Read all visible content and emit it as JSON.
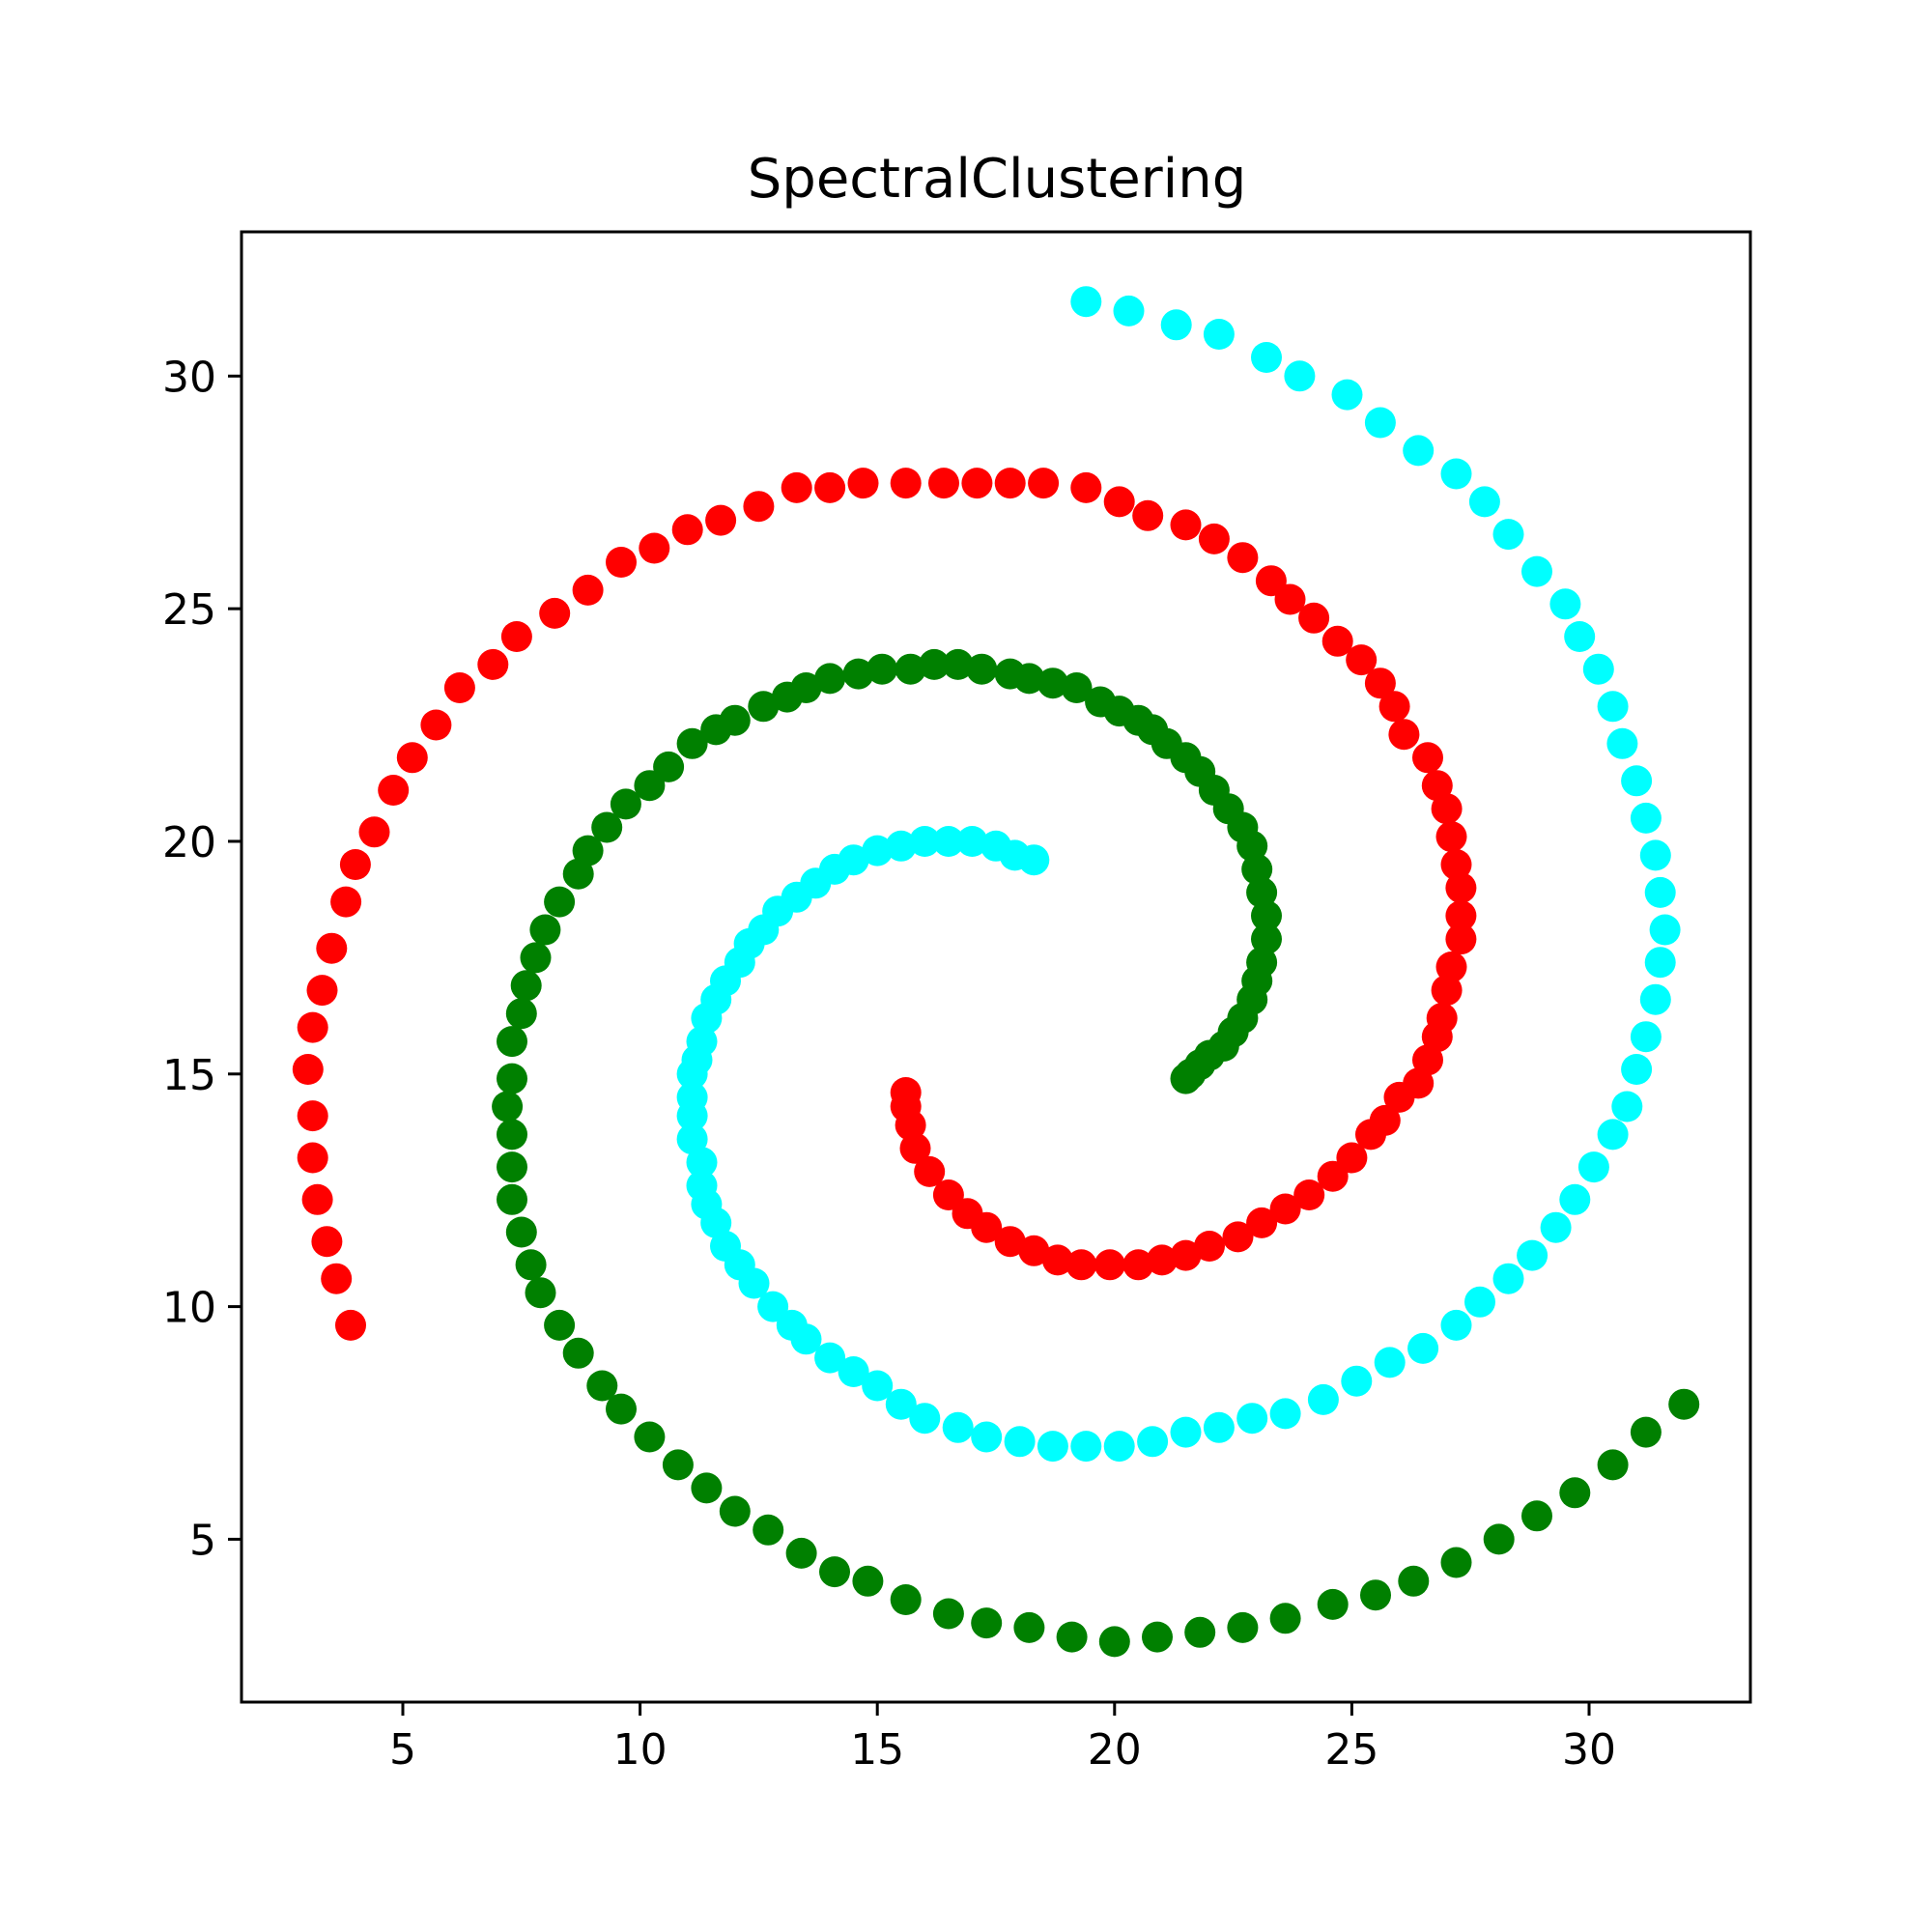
{
  "chart_data": {
    "type": "scatter",
    "title": "SpectralClustering",
    "xlabel": "",
    "ylabel": "",
    "xlim": [
      1.6,
      33.4
    ],
    "ylim": [
      1.5,
      33.1
    ],
    "xticks": [
      5,
      10,
      15,
      20,
      25,
      30
    ],
    "yticks": [
      5,
      10,
      15,
      20,
      25,
      30
    ],
    "grid": false,
    "legend": "none",
    "series": [
      {
        "color": "#ff0000",
        "points": [
          [
            3.9,
            9.6
          ],
          [
            3.6,
            10.6
          ],
          [
            3.4,
            11.4
          ],
          [
            3.2,
            12.3
          ],
          [
            3.1,
            13.2
          ],
          [
            3.1,
            14.1
          ],
          [
            3.0,
            15.1
          ],
          [
            3.1,
            16.0
          ],
          [
            3.3,
            16.8
          ],
          [
            3.5,
            17.7
          ],
          [
            3.8,
            18.7
          ],
          [
            4.0,
            19.5
          ],
          [
            4.4,
            20.2
          ],
          [
            4.8,
            21.1
          ],
          [
            5.2,
            21.8
          ],
          [
            5.7,
            22.5
          ],
          [
            6.2,
            23.3
          ],
          [
            6.9,
            23.8
          ],
          [
            7.4,
            24.4
          ],
          [
            8.2,
            24.9
          ],
          [
            8.9,
            25.4
          ],
          [
            9.6,
            26.0
          ],
          [
            10.3,
            26.3
          ],
          [
            11.0,
            26.7
          ],
          [
            11.7,
            26.9
          ],
          [
            12.5,
            27.2
          ],
          [
            13.3,
            27.6
          ],
          [
            14.0,
            27.6
          ],
          [
            14.7,
            27.7
          ],
          [
            15.6,
            27.7
          ],
          [
            16.4,
            27.7
          ],
          [
            17.1,
            27.7
          ],
          [
            17.8,
            27.7
          ],
          [
            18.5,
            27.7
          ],
          [
            19.4,
            27.6
          ],
          [
            20.1,
            27.3
          ],
          [
            20.7,
            27.0
          ],
          [
            21.5,
            26.8
          ],
          [
            22.1,
            26.5
          ],
          [
            22.7,
            26.1
          ],
          [
            23.3,
            25.6
          ],
          [
            23.7,
            25.2
          ],
          [
            24.2,
            24.8
          ],
          [
            24.7,
            24.3
          ],
          [
            25.2,
            23.9
          ],
          [
            25.6,
            23.4
          ],
          [
            25.9,
            22.9
          ],
          [
            26.1,
            22.3
          ],
          [
            26.6,
            21.8
          ],
          [
            26.8,
            21.2
          ],
          [
            27.0,
            20.7
          ],
          [
            27.1,
            20.1
          ],
          [
            27.2,
            19.5
          ],
          [
            27.3,
            19.0
          ],
          [
            27.3,
            18.4
          ],
          [
            27.3,
            17.9
          ],
          [
            27.1,
            17.3
          ],
          [
            27.0,
            16.8
          ],
          [
            26.9,
            16.2
          ],
          [
            26.8,
            15.8
          ],
          [
            26.6,
            15.3
          ],
          [
            26.4,
            14.8
          ],
          [
            26.0,
            14.5
          ],
          [
            25.7,
            14.0
          ],
          [
            25.4,
            13.7
          ],
          [
            25.0,
            13.2
          ],
          [
            24.6,
            12.8
          ],
          [
            24.1,
            12.4
          ],
          [
            23.6,
            12.1
          ],
          [
            23.1,
            11.8
          ],
          [
            22.6,
            11.5
          ],
          [
            22.0,
            11.3
          ],
          [
            21.5,
            11.1
          ],
          [
            21.0,
            11.0
          ],
          [
            20.5,
            10.9
          ],
          [
            19.9,
            10.9
          ],
          [
            19.3,
            10.9
          ],
          [
            18.8,
            11.0
          ],
          [
            18.3,
            11.2
          ],
          [
            17.8,
            11.4
          ],
          [
            17.3,
            11.7
          ],
          [
            16.9,
            12.0
          ],
          [
            16.5,
            12.4
          ],
          [
            16.1,
            12.9
          ],
          [
            15.8,
            13.4
          ],
          [
            15.7,
            13.9
          ],
          [
            15.6,
            14.3
          ],
          [
            15.6,
            14.6
          ]
        ]
      },
      {
        "color": "#008000",
        "points": [
          [
            32.0,
            7.9
          ],
          [
            31.2,
            7.3
          ],
          [
            30.5,
            6.6
          ],
          [
            29.7,
            6.0
          ],
          [
            28.9,
            5.5
          ],
          [
            28.1,
            5.0
          ],
          [
            27.2,
            4.5
          ],
          [
            26.3,
            4.1
          ],
          [
            25.5,
            3.8
          ],
          [
            24.6,
            3.6
          ],
          [
            23.6,
            3.3
          ],
          [
            22.7,
            3.1
          ],
          [
            21.8,
            3.0
          ],
          [
            20.9,
            2.9
          ],
          [
            20.0,
            2.8
          ],
          [
            19.1,
            2.9
          ],
          [
            18.2,
            3.1
          ],
          [
            17.3,
            3.2
          ],
          [
            16.5,
            3.4
          ],
          [
            15.6,
            3.7
          ],
          [
            14.8,
            4.1
          ],
          [
            14.1,
            4.3
          ],
          [
            13.4,
            4.7
          ],
          [
            12.7,
            5.2
          ],
          [
            12.0,
            5.6
          ],
          [
            11.4,
            6.1
          ],
          [
            10.8,
            6.6
          ],
          [
            10.2,
            7.2
          ],
          [
            9.6,
            7.8
          ],
          [
            9.2,
            8.3
          ],
          [
            8.7,
            9.0
          ],
          [
            8.3,
            9.6
          ],
          [
            7.9,
            10.3
          ],
          [
            7.7,
            10.9
          ],
          [
            7.5,
            11.6
          ],
          [
            7.3,
            12.3
          ],
          [
            7.3,
            13.0
          ],
          [
            7.3,
            13.7
          ],
          [
            7.2,
            14.3
          ],
          [
            7.3,
            14.9
          ],
          [
            7.3,
            15.7
          ],
          [
            7.5,
            16.3
          ],
          [
            7.6,
            16.9
          ],
          [
            7.8,
            17.5
          ],
          [
            8.0,
            18.1
          ],
          [
            8.3,
            18.7
          ],
          [
            8.7,
            19.3
          ],
          [
            8.9,
            19.8
          ],
          [
            9.3,
            20.3
          ],
          [
            9.7,
            20.8
          ],
          [
            10.2,
            21.2
          ],
          [
            10.6,
            21.6
          ],
          [
            11.1,
            22.1
          ],
          [
            11.6,
            22.4
          ],
          [
            12.0,
            22.6
          ],
          [
            12.6,
            22.9
          ],
          [
            13.1,
            23.1
          ],
          [
            13.5,
            23.3
          ],
          [
            14.0,
            23.5
          ],
          [
            14.6,
            23.6
          ],
          [
            15.1,
            23.7
          ],
          [
            15.7,
            23.7
          ],
          [
            16.2,
            23.8
          ],
          [
            16.7,
            23.8
          ],
          [
            17.2,
            23.7
          ],
          [
            17.8,
            23.6
          ],
          [
            18.2,
            23.5
          ],
          [
            18.7,
            23.4
          ],
          [
            19.2,
            23.3
          ],
          [
            19.7,
            23.0
          ],
          [
            20.1,
            22.8
          ],
          [
            20.5,
            22.6
          ],
          [
            20.8,
            22.4
          ],
          [
            21.1,
            22.1
          ],
          [
            21.5,
            21.8
          ],
          [
            21.8,
            21.5
          ],
          [
            22.1,
            21.1
          ],
          [
            22.4,
            20.7
          ],
          [
            22.7,
            20.3
          ],
          [
            22.9,
            19.9
          ],
          [
            23.0,
            19.4
          ],
          [
            23.1,
            18.9
          ],
          [
            23.2,
            18.4
          ],
          [
            23.2,
            17.9
          ],
          [
            23.1,
            17.4
          ],
          [
            23.0,
            17.0
          ],
          [
            22.9,
            16.6
          ],
          [
            22.7,
            16.2
          ],
          [
            22.5,
            15.9
          ],
          [
            22.3,
            15.6
          ],
          [
            22.0,
            15.4
          ],
          [
            21.8,
            15.2
          ],
          [
            21.6,
            15.0
          ],
          [
            21.5,
            14.9
          ]
        ]
      },
      {
        "color": "#00ffff",
        "points": [
          [
            19.4,
            31.6
          ],
          [
            20.3,
            31.4
          ],
          [
            21.3,
            31.1
          ],
          [
            22.2,
            30.9
          ],
          [
            23.2,
            30.4
          ],
          [
            23.9,
            30.0
          ],
          [
            24.9,
            29.6
          ],
          [
            25.6,
            29.0
          ],
          [
            26.4,
            28.4
          ],
          [
            27.2,
            27.9
          ],
          [
            27.8,
            27.3
          ],
          [
            28.3,
            26.6
          ],
          [
            28.9,
            25.8
          ],
          [
            29.5,
            25.1
          ],
          [
            29.8,
            24.4
          ],
          [
            30.2,
            23.7
          ],
          [
            30.5,
            22.9
          ],
          [
            30.7,
            22.1
          ],
          [
            31.0,
            21.3
          ],
          [
            31.2,
            20.5
          ],
          [
            31.4,
            19.7
          ],
          [
            31.5,
            18.9
          ],
          [
            31.6,
            18.1
          ],
          [
            31.5,
            17.4
          ],
          [
            31.4,
            16.6
          ],
          [
            31.2,
            15.8
          ],
          [
            31.0,
            15.1
          ],
          [
            30.8,
            14.3
          ],
          [
            30.5,
            13.7
          ],
          [
            30.1,
            13.0
          ],
          [
            29.7,
            12.3
          ],
          [
            29.3,
            11.7
          ],
          [
            28.8,
            11.1
          ],
          [
            28.3,
            10.6
          ],
          [
            27.7,
            10.1
          ],
          [
            27.2,
            9.6
          ],
          [
            26.5,
            9.1
          ],
          [
            25.8,
            8.8
          ],
          [
            25.1,
            8.4
          ],
          [
            24.4,
            8.0
          ],
          [
            23.6,
            7.7
          ],
          [
            22.9,
            7.6
          ],
          [
            22.2,
            7.4
          ],
          [
            21.5,
            7.3
          ],
          [
            20.8,
            7.1
          ],
          [
            20.1,
            7.0
          ],
          [
            19.4,
            7.0
          ],
          [
            18.7,
            7.0
          ],
          [
            18.0,
            7.1
          ],
          [
            17.3,
            7.2
          ],
          [
            16.7,
            7.4
          ],
          [
            16.0,
            7.6
          ],
          [
            15.5,
            7.9
          ],
          [
            15.0,
            8.3
          ],
          [
            14.5,
            8.6
          ],
          [
            14.0,
            8.9
          ],
          [
            13.5,
            9.3
          ],
          [
            13.2,
            9.6
          ],
          [
            12.8,
            10.0
          ],
          [
            12.4,
            10.5
          ],
          [
            12.1,
            10.9
          ],
          [
            11.8,
            11.3
          ],
          [
            11.6,
            11.8
          ],
          [
            11.4,
            12.2
          ],
          [
            11.3,
            12.6
          ],
          [
            11.3,
            13.1
          ],
          [
            11.1,
            13.6
          ],
          [
            11.1,
            14.1
          ],
          [
            11.1,
            14.5
          ],
          [
            11.1,
            15.0
          ],
          [
            11.2,
            15.3
          ],
          [
            11.3,
            15.7
          ],
          [
            11.4,
            16.2
          ],
          [
            11.6,
            16.6
          ],
          [
            11.8,
            17.0
          ],
          [
            12.1,
            17.4
          ],
          [
            12.3,
            17.8
          ],
          [
            12.6,
            18.1
          ],
          [
            12.9,
            18.5
          ],
          [
            13.3,
            18.8
          ],
          [
            13.7,
            19.1
          ],
          [
            14.1,
            19.4
          ],
          [
            14.5,
            19.6
          ],
          [
            15.0,
            19.8
          ],
          [
            15.5,
            19.9
          ],
          [
            16.0,
            20.0
          ],
          [
            16.5,
            20.0
          ],
          [
            17.0,
            20.0
          ],
          [
            17.5,
            19.9
          ],
          [
            17.9,
            19.7
          ],
          [
            18.3,
            19.6
          ]
        ]
      }
    ]
  }
}
